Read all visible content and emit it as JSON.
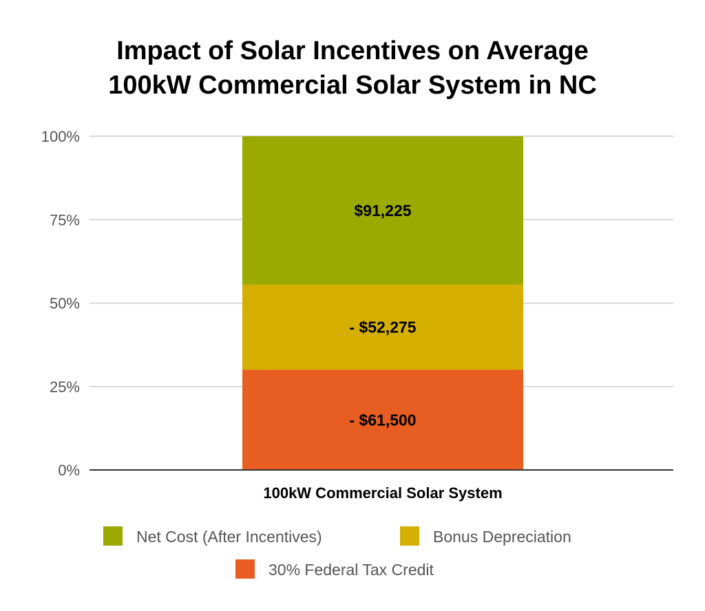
{
  "chart_data": {
    "type": "bar",
    "stacked": true,
    "title": "Impact of Solar Incentives on Average",
    "title_line2": "100kW Commercial Solar System in NC",
    "categories": [
      "100kW Commercial Solar System"
    ],
    "ylim": [
      0,
      100
    ],
    "yticks": [
      "0%",
      "25%",
      "50%",
      "75%",
      "100%"
    ],
    "ytick_values": [
      0,
      25,
      50,
      75,
      100
    ],
    "grid": true,
    "legend_position": "bottom",
    "series": [
      {
        "name": "30% Federal Tax Credit",
        "values": [
          30.0
        ],
        "label": "- $61,500",
        "color": "#e75d22"
      },
      {
        "name": "Bonus Depreciation",
        "values": [
          25.5
        ],
        "label": "- $52,275",
        "color": "#d4af00"
      },
      {
        "name": "Net Cost (After Incentives)",
        "values": [
          44.5
        ],
        "label": "$91,225",
        "color": "#9aaa00"
      }
    ],
    "legend_order": [
      "Net Cost (After Incentives)",
      "Bonus Depreciation",
      "30% Federal Tax Credit"
    ]
  }
}
